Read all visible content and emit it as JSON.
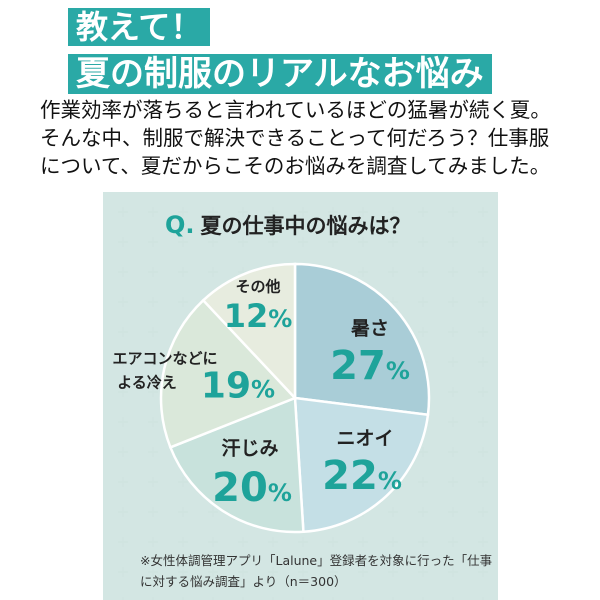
{
  "header": {
    "title1": "教えて！",
    "title2": "夏の制服のリアルなお悩み",
    "accent": "#2aa9a6"
  },
  "intro": [
    "作業効率が落ちると言われているほどの猛暑が続く夏。",
    "そんな中、制服で解決できることって何だろう？仕事服",
    "について、夏だからこそのお悩みを調査してみました。"
  ],
  "chart_data": {
    "type": "pie",
    "title_prefix": "Q.",
    "title": "夏の仕事中の悩みは？",
    "start": "12 o'clock",
    "direction": "clockwise",
    "slices": [
      {
        "label": "暑さ",
        "value": 27,
        "color": "#a9cdd7"
      },
      {
        "label": "ニオイ",
        "value": 22,
        "color": "#c4dfe6"
      },
      {
        "label": "汗じみ",
        "value": 20,
        "color": "#c8e2dc"
      },
      {
        "label_lines": [
          "エアコンなどに",
          "よる冷え"
        ],
        "value": 19,
        "color": "#dae8da"
      },
      {
        "label": "その他",
        "value": 12,
        "color": "#e7ecdf"
      }
    ],
    "unit": "%",
    "value_color": "#1ea39a"
  },
  "note": [
    "※女性体調管理アプリ「Lalune」登録者を対象に行った「仕事",
    "に対する悩み調査」より（n＝300）"
  ]
}
